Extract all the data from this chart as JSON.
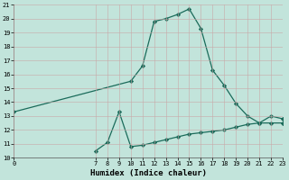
{
  "line1_x": [
    0,
    10,
    11,
    12,
    13,
    14,
    15,
    16,
    17,
    18,
    19,
    20,
    21,
    22,
    23
  ],
  "line1_y": [
    13.3,
    15.5,
    16.6,
    19.8,
    20.0,
    20.3,
    20.7,
    19.3,
    16.3,
    15.2,
    13.9,
    13.0,
    12.5,
    13.0,
    12.8
  ],
  "line2_x": [
    7,
    8,
    9,
    10,
    11,
    12,
    13,
    14,
    15,
    16,
    17,
    18,
    19,
    20,
    21,
    22,
    23
  ],
  "line2_y": [
    10.5,
    11.1,
    13.3,
    10.8,
    10.9,
    11.1,
    11.3,
    11.5,
    11.7,
    11.8,
    11.9,
    12.0,
    12.2,
    12.4,
    12.5,
    12.5,
    12.5
  ],
  "line_color": "#1a6b5a",
  "marker": "D",
  "markersize": 2.2,
  "linewidth": 0.9,
  "xlabel": "Humidex (Indice chaleur)",
  "xlim": [
    0,
    23
  ],
  "ylim": [
    10,
    21
  ],
  "yticks": [
    10,
    11,
    12,
    13,
    14,
    15,
    16,
    17,
    18,
    19,
    20,
    21
  ],
  "xticks": [
    0,
    7,
    8,
    9,
    10,
    11,
    12,
    13,
    14,
    15,
    16,
    17,
    18,
    19,
    20,
    21,
    22,
    23
  ],
  "bg_color": "#c2e4db",
  "grid_color_major": "#c8a8a8",
  "grid_color_minor": "#c8a8a8",
  "tick_fontsize": 5.0,
  "label_fontsize": 6.5
}
